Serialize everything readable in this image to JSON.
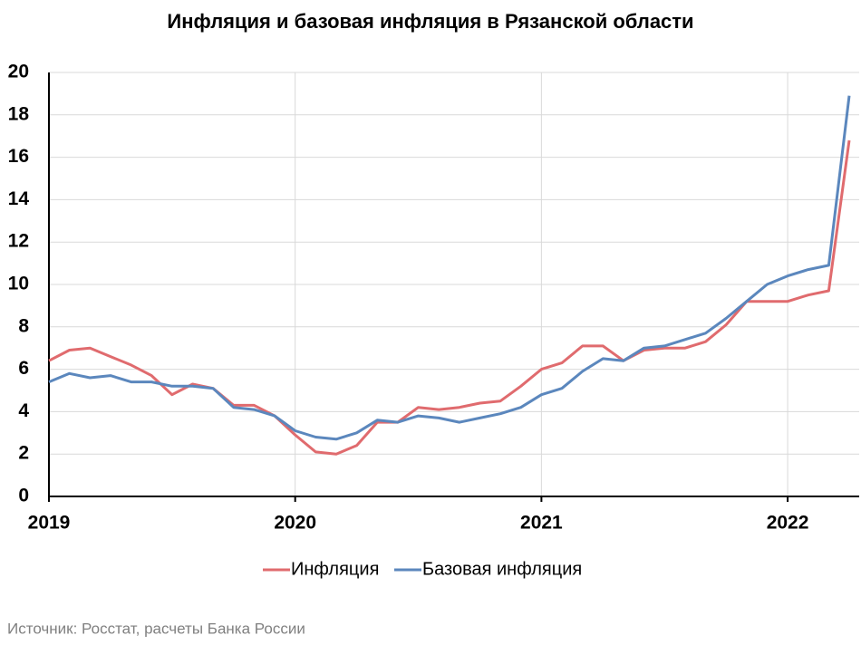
{
  "chart_data": {
    "type": "line",
    "title": "Инфляция и базовая инфляция в Рязанской области",
    "categories": [
      "2019",
      null,
      null,
      null,
      null,
      null,
      null,
      null,
      null,
      null,
      null,
      null,
      "2020",
      null,
      null,
      null,
      null,
      null,
      null,
      null,
      null,
      null,
      null,
      null,
      "2021",
      null,
      null,
      null,
      null,
      null,
      null,
      null,
      null,
      null,
      null,
      null,
      "2022",
      null,
      null,
      null
    ],
    "series": [
      {
        "name": "Инфляция",
        "color": "#e06b6e",
        "values": [
          6.4,
          6.9,
          7.0,
          6.6,
          6.2,
          5.7,
          4.8,
          5.3,
          5.1,
          4.3,
          4.3,
          3.8,
          2.9,
          2.1,
          2.0,
          2.4,
          3.5,
          3.5,
          4.2,
          4.1,
          4.2,
          4.4,
          4.5,
          5.2,
          6.0,
          6.3,
          7.1,
          7.1,
          6.4,
          6.9,
          7.0,
          7.0,
          7.3,
          8.1,
          9.2,
          9.2,
          9.2,
          9.5,
          9.7,
          16.8
        ]
      },
      {
        "name": "Базовая инфляция",
        "color": "#5b87bd",
        "values": [
          5.4,
          5.8,
          5.6,
          5.7,
          5.4,
          5.4,
          5.2,
          5.2,
          5.1,
          4.2,
          4.1,
          3.8,
          3.1,
          2.8,
          2.7,
          3.0,
          3.6,
          3.5,
          3.8,
          3.7,
          3.5,
          3.7,
          3.9,
          4.2,
          4.8,
          5.1,
          5.9,
          6.5,
          6.4,
          7.0,
          7.1,
          7.4,
          7.7,
          8.4,
          9.2,
          10.0,
          10.4,
          10.7,
          10.9,
          18.9
        ]
      }
    ],
    "ylim": [
      0,
      20
    ],
    "yticks": [
      0,
      2,
      4,
      6,
      8,
      10,
      12,
      14,
      16,
      18,
      20
    ],
    "grid": true,
    "legend": "bottom",
    "source": "Источник: Росстат, расчеты Банка России"
  }
}
